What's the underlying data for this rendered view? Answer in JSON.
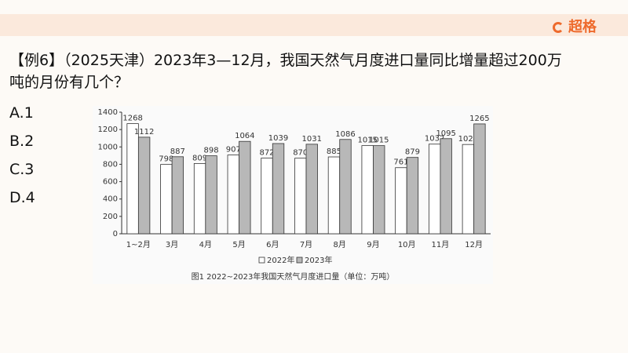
{
  "header": {
    "logo": "超格"
  },
  "question": {
    "line1": "【例6】（2025天津）2023年3—12月，我国天然气月度进口量同比增量超过200万",
    "line2": "吨的月份有几个？"
  },
  "options": [
    "A.1",
    "B.2",
    "C.3",
    "D.4"
  ],
  "chart_data": {
    "type": "bar",
    "caption": "图1  2022~2023年我国天然气月度进口量（单位：万吨）",
    "categories": [
      "1~2月",
      "3月",
      "4月",
      "5月",
      "6月",
      "7月",
      "8月",
      "9月",
      "10月",
      "11月",
      "12月"
    ],
    "series": [
      {
        "name": "2022年",
        "color": "#ffffff",
        "values": [
          1268,
          798,
          809,
          907,
          872,
          870,
          885,
          1015,
          761,
          1032,
          1028
        ]
      },
      {
        "name": "2023年",
        "color": "#b8b8b8",
        "values": [
          1112,
          887,
          898,
          1064,
          1039,
          1031,
          1086,
          1015,
          879,
          1095,
          1265
        ]
      }
    ],
    "ylim": [
      0,
      1400
    ],
    "yticks": [
      0,
      200,
      400,
      600,
      800,
      1000,
      1200,
      1400
    ],
    "grid": false,
    "legend": "bottom"
  }
}
